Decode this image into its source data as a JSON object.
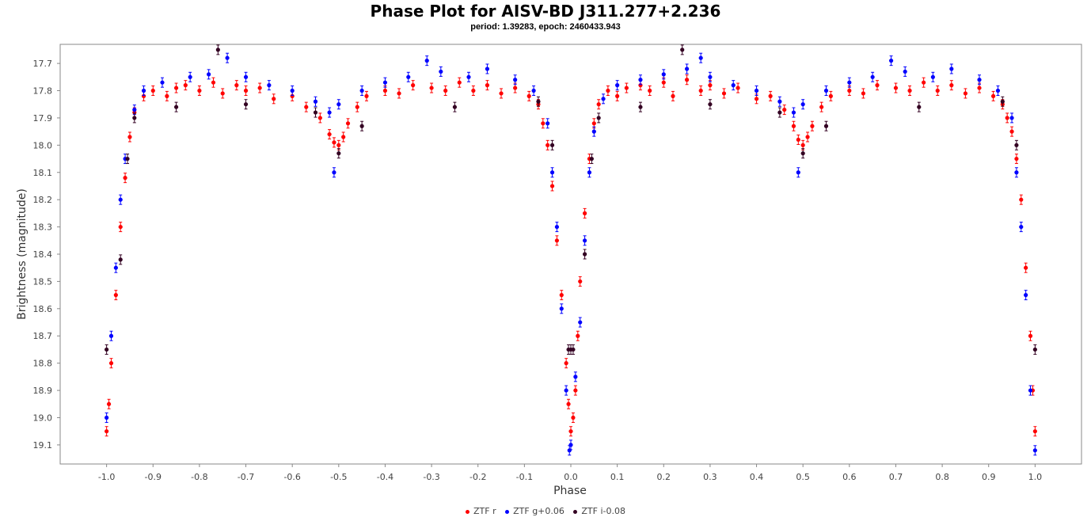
{
  "chart_data": {
    "type": "scatter",
    "title": "Phase Plot for AISV-BD J311.277+2.236",
    "subtitle": "period: 1.39283, epoch: 2460433.943",
    "xlabel": "Phase",
    "ylabel": "Brightness (magnitude)",
    "xlim": [
      -1.1,
      1.1
    ],
    "ylim": [
      19.17,
      17.63
    ],
    "y_inverted": true,
    "x_ticks": [
      "-1.0",
      "-0.9",
      "-0.8",
      "-0.7",
      "-0.6",
      "-0.5",
      "-0.4",
      "-0.3",
      "-0.2",
      "-0.1",
      "0.0",
      "0.1",
      "0.2",
      "0.3",
      "0.4",
      "0.5",
      "0.6",
      "0.7",
      "0.8",
      "0.9",
      "1.0"
    ],
    "y_ticks": [
      "17.7",
      "17.8",
      "17.9",
      "18.0",
      "18.1",
      "18.2",
      "18.3",
      "18.4",
      "18.5",
      "18.6",
      "18.7",
      "18.8",
      "18.9",
      "19.0",
      "19.1"
    ],
    "grid": false,
    "legend_position": "bottom-center",
    "series": [
      {
        "name": "ZTF r",
        "color": "#ff0000",
        "points": [
          [
            0.0,
            19.05
          ],
          [
            0.005,
            19.0
          ],
          [
            0.01,
            18.9
          ],
          [
            0.015,
            18.7
          ],
          [
            0.02,
            18.5
          ],
          [
            0.03,
            18.25
          ],
          [
            0.04,
            18.05
          ],
          [
            0.05,
            17.92
          ],
          [
            0.06,
            17.85
          ],
          [
            0.08,
            17.8
          ],
          [
            0.1,
            17.82
          ],
          [
            0.12,
            17.79
          ],
          [
            0.15,
            17.78
          ],
          [
            0.17,
            17.8
          ],
          [
            0.2,
            17.77
          ],
          [
            0.22,
            17.82
          ],
          [
            0.25,
            17.76
          ],
          [
            0.28,
            17.8
          ],
          [
            0.3,
            17.78
          ],
          [
            0.33,
            17.81
          ],
          [
            0.36,
            17.79
          ],
          [
            0.4,
            17.83
          ],
          [
            0.43,
            17.82
          ],
          [
            0.46,
            17.87
          ],
          [
            0.48,
            17.93
          ],
          [
            0.49,
            17.98
          ],
          [
            0.5,
            18.0
          ],
          [
            0.51,
            17.97
          ],
          [
            0.52,
            17.93
          ],
          [
            0.54,
            17.86
          ],
          [
            0.56,
            17.82
          ],
          [
            0.6,
            17.8
          ],
          [
            0.63,
            17.81
          ],
          [
            0.66,
            17.78
          ],
          [
            0.7,
            17.79
          ],
          [
            0.73,
            17.8
          ],
          [
            0.76,
            17.77
          ],
          [
            0.79,
            17.8
          ],
          [
            0.82,
            17.78
          ],
          [
            0.85,
            17.81
          ],
          [
            0.88,
            17.79
          ],
          [
            0.91,
            17.82
          ],
          [
            0.93,
            17.85
          ],
          [
            0.94,
            17.9
          ],
          [
            0.95,
            17.95
          ],
          [
            0.96,
            18.05
          ],
          [
            0.97,
            18.2
          ],
          [
            0.98,
            18.45
          ],
          [
            0.99,
            18.7
          ],
          [
            0.995,
            18.9
          ],
          [
            1.0,
            19.05
          ],
          [
            -1.0,
            19.05
          ],
          [
            -0.995,
            18.95
          ],
          [
            -0.99,
            18.8
          ],
          [
            -0.98,
            18.55
          ],
          [
            -0.97,
            18.3
          ],
          [
            -0.96,
            18.12
          ],
          [
            -0.95,
            17.97
          ],
          [
            -0.94,
            17.88
          ],
          [
            -0.92,
            17.82
          ],
          [
            -0.9,
            17.8
          ],
          [
            -0.87,
            17.82
          ],
          [
            -0.85,
            17.79
          ],
          [
            -0.83,
            17.78
          ],
          [
            -0.8,
            17.8
          ],
          [
            -0.77,
            17.77
          ],
          [
            -0.75,
            17.81
          ],
          [
            -0.72,
            17.78
          ],
          [
            -0.7,
            17.8
          ],
          [
            -0.67,
            17.79
          ],
          [
            -0.64,
            17.83
          ],
          [
            -0.6,
            17.82
          ],
          [
            -0.57,
            17.86
          ],
          [
            -0.54,
            17.9
          ],
          [
            -0.52,
            17.96
          ],
          [
            -0.51,
            17.99
          ],
          [
            -0.5,
            18.0
          ],
          [
            -0.49,
            17.97
          ],
          [
            -0.48,
            17.92
          ],
          [
            -0.46,
            17.86
          ],
          [
            -0.44,
            17.82
          ],
          [
            -0.4,
            17.8
          ],
          [
            -0.37,
            17.81
          ],
          [
            -0.34,
            17.78
          ],
          [
            -0.3,
            17.79
          ],
          [
            -0.27,
            17.8
          ],
          [
            -0.24,
            17.77
          ],
          [
            -0.21,
            17.8
          ],
          [
            -0.18,
            17.78
          ],
          [
            -0.15,
            17.81
          ],
          [
            -0.12,
            17.79
          ],
          [
            -0.09,
            17.82
          ],
          [
            -0.07,
            17.85
          ],
          [
            -0.06,
            17.92
          ],
          [
            -0.05,
            18.0
          ],
          [
            -0.04,
            18.15
          ],
          [
            -0.03,
            18.35
          ],
          [
            -0.02,
            18.55
          ],
          [
            -0.01,
            18.8
          ],
          [
            -0.005,
            18.95
          ]
        ]
      },
      {
        "name": "ZTF g+0.06",
        "color": "#0000ff",
        "points": [
          [
            0.0,
            19.1
          ],
          [
            0.01,
            18.85
          ],
          [
            0.02,
            18.65
          ],
          [
            0.03,
            18.35
          ],
          [
            0.04,
            18.1
          ],
          [
            0.05,
            17.95
          ],
          [
            0.07,
            17.83
          ],
          [
            0.1,
            17.78
          ],
          [
            0.15,
            17.76
          ],
          [
            0.2,
            17.74
          ],
          [
            0.25,
            17.72
          ],
          [
            0.28,
            17.68
          ],
          [
            0.3,
            17.75
          ],
          [
            0.35,
            17.78
          ],
          [
            0.4,
            17.8
          ],
          [
            0.45,
            17.84
          ],
          [
            0.48,
            17.88
          ],
          [
            0.49,
            18.1
          ],
          [
            0.5,
            17.85
          ],
          [
            0.55,
            17.8
          ],
          [
            0.6,
            17.77
          ],
          [
            0.65,
            17.75
          ],
          [
            0.69,
            17.69
          ],
          [
            0.72,
            17.73
          ],
          [
            0.78,
            17.75
          ],
          [
            0.82,
            17.72
          ],
          [
            0.88,
            17.76
          ],
          [
            0.92,
            17.8
          ],
          [
            0.95,
            17.9
          ],
          [
            0.96,
            18.1
          ],
          [
            0.97,
            18.3
          ],
          [
            0.98,
            18.55
          ],
          [
            0.99,
            18.9
          ],
          [
            1.0,
            19.12
          ],
          [
            -1.0,
            19.0
          ],
          [
            -0.99,
            18.7
          ],
          [
            -0.98,
            18.45
          ],
          [
            -0.97,
            18.2
          ],
          [
            -0.96,
            18.05
          ],
          [
            -0.94,
            17.87
          ],
          [
            -0.92,
            17.8
          ],
          [
            -0.88,
            17.77
          ],
          [
            -0.82,
            17.75
          ],
          [
            -0.78,
            17.74
          ],
          [
            -0.74,
            17.68
          ],
          [
            -0.7,
            17.75
          ],
          [
            -0.65,
            17.78
          ],
          [
            -0.6,
            17.8
          ],
          [
            -0.55,
            17.84
          ],
          [
            -0.52,
            17.88
          ],
          [
            -0.51,
            18.1
          ],
          [
            -0.5,
            17.85
          ],
          [
            -0.45,
            17.8
          ],
          [
            -0.4,
            17.77
          ],
          [
            -0.35,
            17.75
          ],
          [
            -0.31,
            17.69
          ],
          [
            -0.28,
            17.73
          ],
          [
            -0.22,
            17.75
          ],
          [
            -0.18,
            17.72
          ],
          [
            -0.12,
            17.76
          ],
          [
            -0.08,
            17.8
          ],
          [
            -0.05,
            17.92
          ],
          [
            -0.04,
            18.1
          ],
          [
            -0.03,
            18.3
          ],
          [
            -0.02,
            18.6
          ],
          [
            -0.01,
            18.9
          ],
          [
            -0.003,
            19.12
          ]
        ]
      },
      {
        "name": "ZTF i-0.08",
        "color": "#330022",
        "points": [
          [
            0.0,
            18.75
          ],
          [
            0.005,
            18.75
          ],
          [
            0.03,
            18.4
          ],
          [
            0.045,
            18.05
          ],
          [
            0.06,
            17.9
          ],
          [
            0.15,
            17.86
          ],
          [
            0.24,
            17.65
          ],
          [
            0.3,
            17.85
          ],
          [
            0.45,
            17.88
          ],
          [
            0.5,
            18.03
          ],
          [
            0.55,
            17.93
          ],
          [
            0.75,
            17.86
          ],
          [
            0.93,
            17.84
          ],
          [
            0.96,
            18.0
          ],
          [
            1.0,
            18.75
          ],
          [
            -1.0,
            18.75
          ],
          [
            -0.97,
            18.42
          ],
          [
            -0.955,
            18.05
          ],
          [
            -0.94,
            17.9
          ],
          [
            -0.85,
            17.86
          ],
          [
            -0.76,
            17.65
          ],
          [
            -0.7,
            17.85
          ],
          [
            -0.55,
            17.88
          ],
          [
            -0.5,
            18.03
          ],
          [
            -0.45,
            17.93
          ],
          [
            -0.25,
            17.86
          ],
          [
            -0.07,
            17.84
          ],
          [
            -0.04,
            18.0
          ],
          [
            -0.005,
            18.75
          ]
        ]
      }
    ]
  }
}
